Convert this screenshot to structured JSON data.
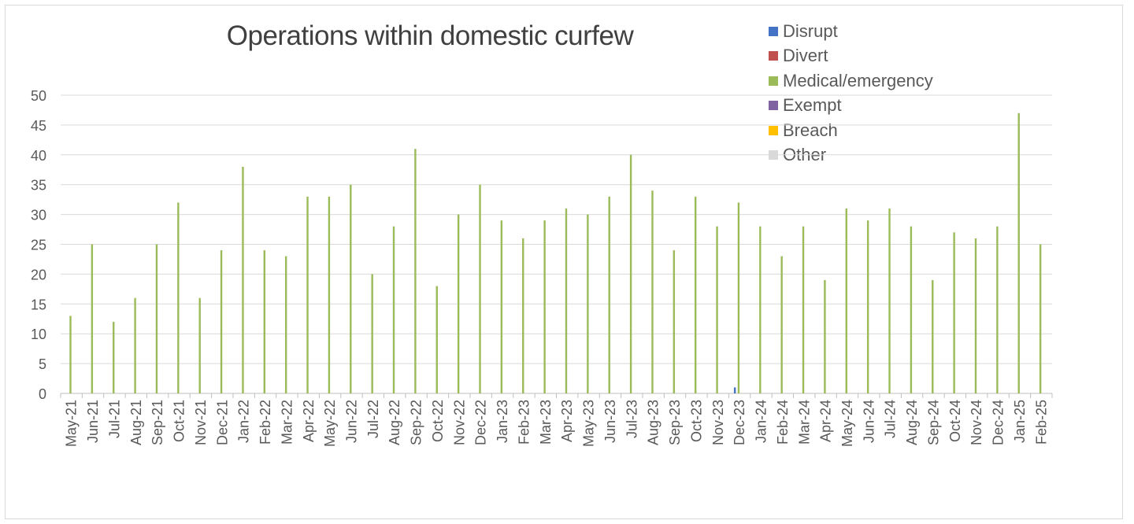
{
  "chart_data": {
    "type": "bar",
    "title": "Operations within domestic curfew",
    "xlabel": "",
    "ylabel": "",
    "ylim": [
      0,
      50
    ],
    "yticks": [
      0,
      5,
      10,
      15,
      20,
      25,
      30,
      35,
      40,
      45,
      50
    ],
    "grid": true,
    "legend_position": "top-right",
    "categories": [
      "May-21",
      "Jun-21",
      "Jul-21",
      "Aug-21",
      "Sep-21",
      "Oct-21",
      "Nov-21",
      "Dec-21",
      "Jan-22",
      "Feb-22",
      "Mar-22",
      "Apr-22",
      "May-22",
      "Jun-22",
      "Jul-22",
      "Aug-22",
      "Sep-22",
      "Oct-22",
      "Nov-22",
      "Dec-22",
      "Jan-23",
      "Feb-23",
      "Mar-23",
      "Apr-23",
      "May-23",
      "Jun-23",
      "Jul-23",
      "Aug-23",
      "Sep-23",
      "Oct-23",
      "Nov-23",
      "Dec-23",
      "Jan-24",
      "Feb-24",
      "Mar-24",
      "Apr-24",
      "May-24",
      "Jun-24",
      "Jul-24",
      "Aug-24",
      "Sep-24",
      "Oct-24",
      "Nov-24",
      "Dec-24",
      "Jan-25",
      "Feb-25"
    ],
    "series": [
      {
        "name": "Disrupt",
        "color": "#4472c4",
        "values": [
          0,
          0,
          0,
          0,
          0,
          0,
          0,
          0,
          0,
          0,
          0,
          0,
          0,
          0,
          0,
          0,
          0,
          0,
          0,
          0,
          0,
          0,
          0,
          0,
          0,
          0,
          0,
          0,
          0,
          0,
          0,
          1,
          0,
          0,
          0,
          0,
          0,
          0,
          0,
          0,
          0,
          0,
          0,
          0,
          0,
          0
        ]
      },
      {
        "name": "Divert",
        "color": "#c0504d",
        "values": [
          0,
          0,
          0,
          0,
          0,
          0,
          0,
          0,
          0,
          0,
          0,
          0,
          0,
          0,
          0,
          0,
          0,
          0,
          0,
          0,
          0,
          0,
          0,
          0,
          0,
          0,
          0,
          0,
          0,
          0,
          0,
          0,
          0,
          0,
          0,
          0,
          0,
          0,
          0,
          0,
          0,
          0,
          0,
          0,
          0,
          0
        ]
      },
      {
        "name": "Medical/emergency",
        "color": "#9bbb59",
        "values": [
          13,
          25,
          12,
          16,
          25,
          32,
          16,
          24,
          38,
          24,
          23,
          33,
          33,
          35,
          20,
          28,
          41,
          18,
          30,
          35,
          29,
          26,
          29,
          31,
          30,
          33,
          40,
          34,
          24,
          33,
          28,
          32,
          28,
          23,
          28,
          19,
          31,
          29,
          31,
          28,
          19,
          27,
          26,
          28,
          47,
          25
        ]
      },
      {
        "name": "Exempt",
        "color": "#8064a2",
        "values": [
          0,
          0,
          0,
          0,
          0,
          0,
          0,
          0,
          0,
          0,
          0,
          0,
          0,
          0,
          0,
          0,
          0,
          0,
          0,
          0,
          0,
          0,
          0,
          0,
          0,
          0,
          0,
          0,
          0,
          0,
          0,
          0,
          0,
          0,
          0,
          0,
          0,
          0,
          0,
          0,
          0,
          0,
          0,
          0,
          0,
          0
        ]
      },
      {
        "name": "Breach",
        "color": "#ffc000",
        "values": [
          0,
          0,
          0,
          0,
          0,
          0,
          0,
          0,
          0,
          0,
          0,
          0,
          0,
          0,
          0,
          0,
          0,
          0,
          0,
          0,
          0,
          0,
          0,
          0,
          0,
          0,
          0,
          0,
          0,
          0,
          0,
          0,
          0,
          0,
          0,
          0,
          0,
          0,
          0,
          0,
          0,
          0,
          0,
          0,
          0,
          0
        ]
      },
      {
        "name": "Other",
        "color": "#d9d9d9",
        "values": [
          0,
          0,
          0,
          0,
          0,
          0,
          0,
          0,
          0,
          0,
          0,
          0,
          0,
          0,
          0,
          0,
          0,
          0,
          0,
          0,
          0,
          0,
          0,
          0,
          0,
          0,
          0,
          0,
          0,
          0,
          0,
          0,
          0,
          0,
          0,
          0,
          0,
          0,
          0,
          0,
          0,
          0,
          0,
          0,
          0,
          0
        ]
      }
    ]
  }
}
